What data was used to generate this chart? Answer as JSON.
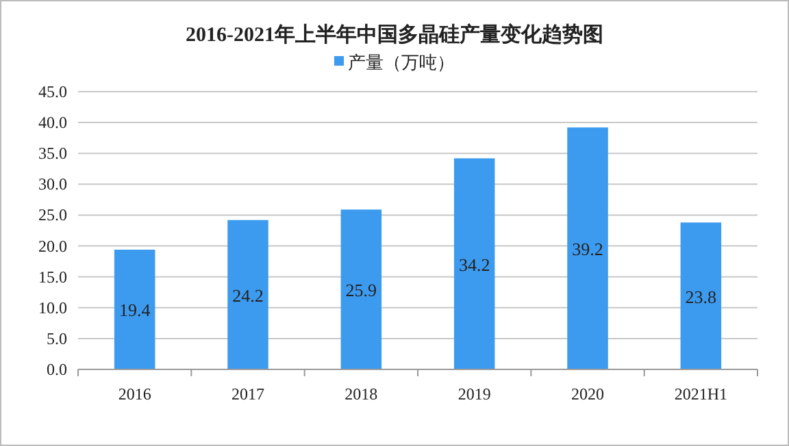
{
  "chart_data": {
    "type": "bar",
    "title": "2016-2021年上半年中国多晶硅产量变化趋势图",
    "categories": [
      "2016",
      "2017",
      "2018",
      "2019",
      "2020",
      "2021H1"
    ],
    "series": [
      {
        "name": "产量（万吨）",
        "color": "#3d9bef",
        "values": [
          19.4,
          24.2,
          25.9,
          34.2,
          39.2,
          23.8
        ]
      }
    ],
    "ylim": [
      0,
      45
    ],
    "yticks": [
      {
        "value": 0,
        "label": "0.0"
      },
      {
        "value": 5,
        "label": "5.0"
      },
      {
        "value": 10,
        "label": "10.0"
      },
      {
        "value": 15,
        "label": "15.0"
      },
      {
        "value": 20,
        "label": "20.0"
      },
      {
        "value": 25,
        "label": "25.0"
      },
      {
        "value": 30,
        "label": "30.0"
      },
      {
        "value": 35,
        "label": "35.0"
      },
      {
        "value": 40,
        "label": "40.0"
      },
      {
        "value": 45,
        "label": "45.0"
      }
    ],
    "grid": "y",
    "legend": "top",
    "data_labels": true
  }
}
